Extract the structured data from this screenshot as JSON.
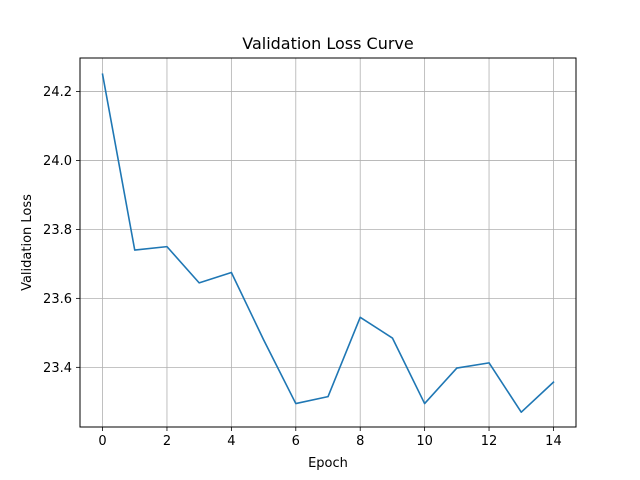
{
  "chart_data": {
    "type": "line",
    "title": "Validation Loss Curve",
    "xlabel": "Epoch",
    "ylabel": "Validation Loss",
    "xlim": [
      -0.7,
      14.7
    ],
    "ylim": [
      23.227,
      24.297
    ],
    "x_ticks": [
      0,
      2,
      4,
      6,
      8,
      10,
      12,
      14
    ],
    "y_ticks": [
      23.4,
      23.6,
      23.8,
      24.0,
      24.2
    ],
    "x_tick_labels": [
      "0",
      "2",
      "4",
      "6",
      "8",
      "10",
      "12",
      "14"
    ],
    "y_tick_labels": [
      "23.4",
      "23.6",
      "23.8",
      "24.0",
      "24.2"
    ],
    "grid": true,
    "series": [
      {
        "color": "#1f77b4",
        "x": [
          0,
          1,
          2,
          3,
          4,
          5,
          6,
          7,
          8,
          9,
          10,
          11,
          12,
          13,
          14
        ],
        "y": [
          24.25,
          23.74,
          23.75,
          23.645,
          23.675,
          23.48,
          23.295,
          23.315,
          23.545,
          23.485,
          23.295,
          23.398,
          23.413,
          23.27,
          23.357
        ]
      }
    ]
  }
}
